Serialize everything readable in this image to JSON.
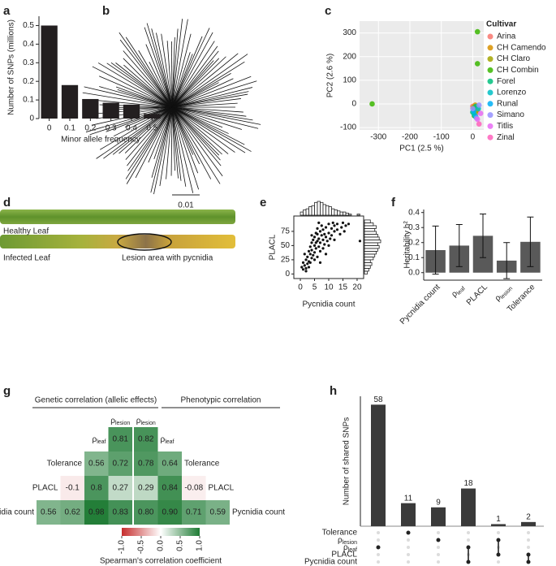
{
  "chart_data": [
    {
      "type": "bar",
      "letter": "a",
      "ylabel": "Number of SNPs (millions)",
      "xlabel": "Minor allele frequency",
      "categories": [
        "0",
        "0.1",
        "0.2",
        "0.3",
        "0.4",
        "0.5"
      ],
      "values": [
        0.5,
        0.18,
        0.105,
        0.085,
        0.075,
        0.025
      ],
      "color": "#231f20",
      "ylim": [
        0,
        0.55
      ],
      "yticks": [
        0,
        0.1,
        0.2,
        0.3,
        0.4,
        0.5
      ]
    },
    {
      "type": "scatter",
      "letter": "c",
      "xlabel": "PC1 (2.5 %)",
      "ylabel": "PC2 (2.6 %)",
      "legend_title": "Cultivar",
      "xlim": [
        -360,
        35
      ],
      "xticks": [
        -300,
        -200,
        -100,
        0
      ],
      "ylim": [
        -110,
        350
      ],
      "yticks": [
        -100,
        0,
        100,
        200,
        300
      ],
      "grid": true,
      "series": [
        {
          "name": "Arina",
          "color": "#f8766d",
          "x": [
            5,
            10,
            0
          ],
          "y": [
            -20,
            -40,
            -10
          ]
        },
        {
          "name": "CH Camendo",
          "color": "#d89000",
          "x": [
            8,
            15
          ],
          "y": [
            -5,
            -25
          ]
        },
        {
          "name": "CH Claro",
          "color": "#a3a500",
          "x": [
            2,
            12
          ],
          "y": [
            -15,
            -30
          ]
        },
        {
          "name": "CH Combin",
          "color": "#39b600",
          "x": [
            15,
            15,
            -320,
            5
          ],
          "y": [
            305,
            170,
            0,
            -50
          ]
        },
        {
          "name": "Forel",
          "color": "#00bf7d",
          "x": [
            0,
            10
          ],
          "y": [
            -35,
            -10
          ]
        },
        {
          "name": "Lorenzo",
          "color": "#00bfc4",
          "x": [
            5,
            18
          ],
          "y": [
            -45,
            -20
          ]
        },
        {
          "name": "Runal",
          "color": "#00b0f6",
          "x": [
            10,
            3
          ],
          "y": [
            -55,
            -30
          ]
        },
        {
          "name": "Simano",
          "color": "#9590ff",
          "x": [
            0,
            12,
            20
          ],
          "y": [
            -20,
            -60,
            -5
          ]
        },
        {
          "name": "Titlis",
          "color": "#e76bf3",
          "x": [
            15,
            25
          ],
          "y": [
            -65,
            -40
          ]
        },
        {
          "name": "Zinal",
          "color": "#ff62bc",
          "x": [
            20
          ],
          "y": [
            -85
          ]
        }
      ]
    },
    {
      "type": "scatter_hist",
      "letter": "e",
      "xlabel": "Pycnidia count",
      "ylabel": "PLACL",
      "xlim": [
        -2.3,
        22.3
      ],
      "xticks": [
        0,
        5,
        10,
        15,
        20
      ],
      "ylim": [
        -8,
        102
      ],
      "yticks": [
        0,
        25,
        50,
        75
      ],
      "x": [
        0.5,
        1,
        1,
        1.5,
        2,
        2,
        2.5,
        2.5,
        3,
        3,
        3,
        3.5,
        3.5,
        4,
        4,
        4,
        4.5,
        4.5,
        5,
        5,
        5,
        5.5,
        5.5,
        6,
        6,
        6,
        6.5,
        6.5,
        7,
        7,
        7,
        7.5,
        7.5,
        8,
        8,
        8.5,
        8.5,
        9,
        9,
        9.5,
        10,
        10,
        10.5,
        11,
        11,
        11.5,
        12,
        12,
        13,
        13,
        14,
        14.5,
        15,
        15.5,
        16,
        17,
        21,
        2,
        3.5,
        5,
        6,
        4,
        8,
        9,
        10,
        12,
        7,
        5.5,
        6.5,
        1.5
      ],
      "y": [
        12,
        8,
        20,
        15,
        25,
        10,
        30,
        18,
        40,
        22,
        12,
        35,
        48,
        28,
        55,
        42,
        60,
        33,
        50,
        65,
        38,
        72,
        45,
        58,
        80,
        30,
        62,
        48,
        75,
        55,
        40,
        68,
        85,
        60,
        78,
        52,
        70,
        82,
        65,
        58,
        88,
        72,
        62,
        80,
        68,
        90,
        75,
        85,
        78,
        88,
        70,
        82,
        90,
        75,
        85,
        88,
        58,
        5,
        20,
        25,
        70,
        68,
        45,
        35,
        50,
        60,
        20,
        55,
        90,
        35
      ],
      "x_hist": {
        "bins": [
          0,
          1,
          2,
          3,
          4,
          5,
          6,
          7,
          8,
          9,
          10,
          11,
          12,
          13,
          14,
          15,
          16,
          17,
          18,
          19,
          20,
          21
        ],
        "counts": [
          3,
          5,
          6,
          8,
          9,
          12,
          13,
          12,
          10,
          9,
          8,
          6,
          5,
          4,
          3,
          3,
          2,
          1,
          0,
          0,
          1
        ]
      },
      "y_hist": {
        "bins": [
          0,
          5,
          10,
          15,
          20,
          25,
          30,
          35,
          40,
          45,
          50,
          55,
          60,
          65,
          70,
          75,
          80,
          85,
          90,
          95
        ],
        "counts": [
          2,
          3,
          4,
          5,
          4,
          6,
          7,
          8,
          9,
          10,
          9,
          11,
          10,
          9,
          8,
          7,
          8,
          6,
          4
        ]
      }
    },
    {
      "type": "bar_error",
      "letter": "f",
      "ylabel": "Heritability h²",
      "categories": [
        "Pycnidia count",
        "ρleaf",
        "PLACL",
        "ρlesion",
        "Tolerance"
      ],
      "values": [
        0.15,
        0.18,
        0.245,
        0.08,
        0.205
      ],
      "errors": [
        0.16,
        0.14,
        0.145,
        0.12,
        0.165
      ],
      "color": "#595959",
      "ylim": [
        -0.05,
        0.42
      ],
      "yticks": [
        {
          "value": 0,
          "label": "0.0"
        },
        0.1,
        0.2,
        0.3,
        0.4
      ]
    },
    {
      "type": "heatmap",
      "letter": "g",
      "title_genetic": "Genetic correlation (allelic effects)",
      "title_phenotypic": "Phenotypic correlation",
      "traits": [
        "ρlesion",
        "ρleaf",
        "Tolerance",
        "PLACL",
        "Pycnidia count"
      ],
      "genetic": [
        [
          0.81
        ],
        [
          0.56,
          0.72
        ],
        [
          -0.1,
          0.8,
          0.27
        ],
        [
          0.56,
          0.62,
          0.98,
          0.83
        ]
      ],
      "phenotypic": [
        [
          0.82
        ],
        [
          0.78,
          0.64
        ],
        [
          0.29,
          0.84,
          -0.08
        ],
        [
          0.8,
          0.9,
          0.71,
          0.59
        ]
      ],
      "phenotypic_labels": [
        [
          "0.82"
        ],
        [
          "0.78",
          "0.64"
        ],
        [
          "0.29",
          "0.84",
          "-0.08"
        ],
        [
          "0.80",
          "0.90",
          "0.71",
          "0.59"
        ]
      ],
      "colorbar": {
        "title": "Spearman's correlation coefficient",
        "lim": [
          -1,
          1
        ],
        "ticks": [
          {
            "value": -1,
            "label": "-1.0"
          },
          -0.5,
          {
            "value": 0,
            "label": "0.0"
          },
          0.5,
          {
            "value": 1,
            "label": "1.0"
          }
        ]
      }
    },
    {
      "type": "upset",
      "letter": "h",
      "ylabel": "Number of shared SNPs",
      "set_names": [
        "Tolerance",
        "ρlesion",
        "ρleaf",
        "PLACL",
        "Pycnidia count"
      ],
      "values": [
        58,
        11,
        9,
        18,
        1,
        2
      ],
      "sets": [
        [
          2
        ],
        [
          0
        ],
        [
          1
        ],
        [
          2,
          4
        ],
        [
          1,
          3
        ],
        [
          3,
          4
        ]
      ],
      "color": "#3a3a3a",
      "ylim": [
        0,
        62
      ]
    }
  ],
  "panel_b": {
    "letter": "b",
    "scale_label": "0.01"
  },
  "panel_d": {
    "letter": "d",
    "healthy": "Healthy Leaf",
    "infected": "Infected Leaf",
    "lesion": "Lesion area with pycnidia"
  }
}
